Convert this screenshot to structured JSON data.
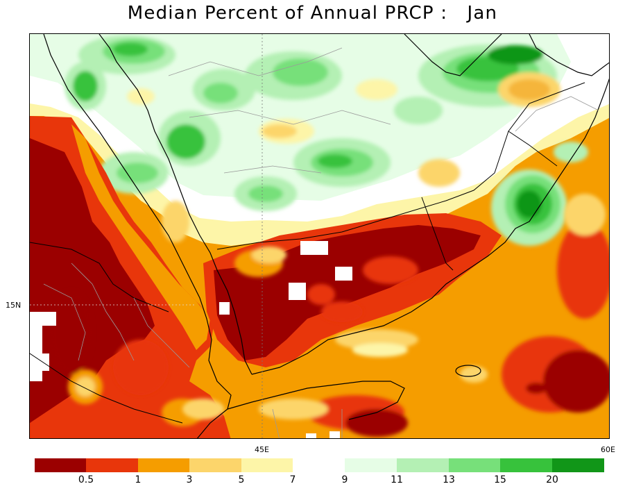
{
  "title": "Median Percent of Annual PRCP :   Jan",
  "axes": {
    "lat_label": "15N",
    "lon_labels": [
      "45E",
      "60E"
    ]
  },
  "legend": {
    "colors": [
      "#9b0000",
      "#e8360b",
      "#f59d00",
      "#fcd56b",
      "#fdf5a8",
      "#e6fde6",
      "#b4f0b4",
      "#77e07a",
      "#37c23c",
      "#119618"
    ],
    "labels": [
      "0.5",
      "1",
      "3",
      "5",
      "7",
      "9",
      "11",
      "13",
      "15",
      "20"
    ]
  },
  "map": {
    "region": "Arabian Peninsula, Red Sea, Horn of Africa",
    "palette": {
      "ocean_orange": "#f59d00",
      "dark_red": "#9b0000",
      "red": "#e8360b",
      "yellow": "#fcd56b",
      "pale_yellow": "#fdf5a8",
      "white": "#ffffff",
      "very_light_green": "#e6fde6",
      "light_green": "#b4f0b4",
      "mid_green": "#77e07a",
      "green": "#37c23c",
      "dark_green": "#119618"
    }
  }
}
